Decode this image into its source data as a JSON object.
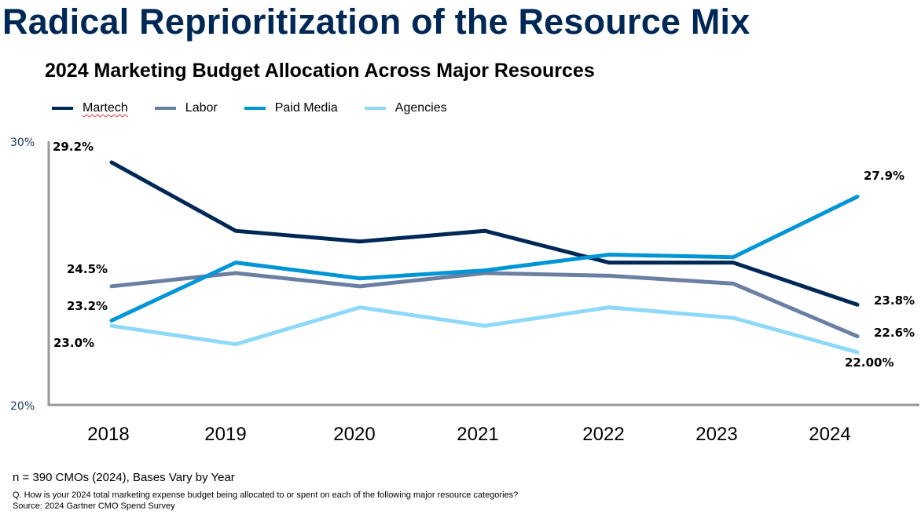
{
  "slide": {
    "title": "Radical Reprioritization of the Resource Mix",
    "footnote_n": "n = 390 CMOs (2024), Bases Vary by Year",
    "footnote_question": "Q. How is your 2024 total marketing expense budget being allocated to or spent on each of the following major resource categories?",
    "footnote_source": "Source: 2024 Gartner CMO Spend Survey"
  },
  "chart_data": {
    "type": "line",
    "title": "2024 Marketing Budget Allocation Across Major Resources",
    "xlabel": "",
    "ylabel": "",
    "x": [
      "2018",
      "2019",
      "2020",
      "2021",
      "2022",
      "2023",
      "2024"
    ],
    "ylim": [
      20,
      30
    ],
    "yticks": [
      "20%",
      "30%"
    ],
    "grid": false,
    "legend_position": "top-left",
    "series": [
      {
        "name": "Martech",
        "color": "#002856",
        "values": [
          29.2,
          26.6,
          26.2,
          26.6,
          25.4,
          25.4,
          23.8
        ],
        "labels": [
          {
            "index": 0,
            "text": "29.2%"
          },
          {
            "index": 6,
            "text": "23.8%"
          }
        ]
      },
      {
        "name": "Labor",
        "color": "#6b7fa3",
        "values": [
          24.5,
          25.0,
          24.5,
          25.0,
          24.9,
          24.6,
          22.6
        ],
        "labels": [
          {
            "index": 0,
            "text": "24.5%"
          },
          {
            "index": 6,
            "text": "22.6%"
          }
        ]
      },
      {
        "name": "Paid Media",
        "color": "#0095d5",
        "values": [
          23.2,
          25.4,
          24.8,
          25.1,
          25.7,
          25.6,
          27.9
        ],
        "labels": [
          {
            "index": 0,
            "text": "23.2%"
          },
          {
            "index": 6,
            "text": "27.9%"
          }
        ]
      },
      {
        "name": "Agencies",
        "color": "#8fd9f8",
        "values": [
          23.0,
          22.3,
          23.7,
          23.0,
          23.7,
          23.3,
          22.0
        ],
        "labels": [
          {
            "index": 0,
            "text": "23.0%"
          },
          {
            "index": 6,
            "text": "22.00%"
          }
        ]
      }
    ],
    "axis_color": "#999999",
    "ytick_color": "#1f3864"
  }
}
